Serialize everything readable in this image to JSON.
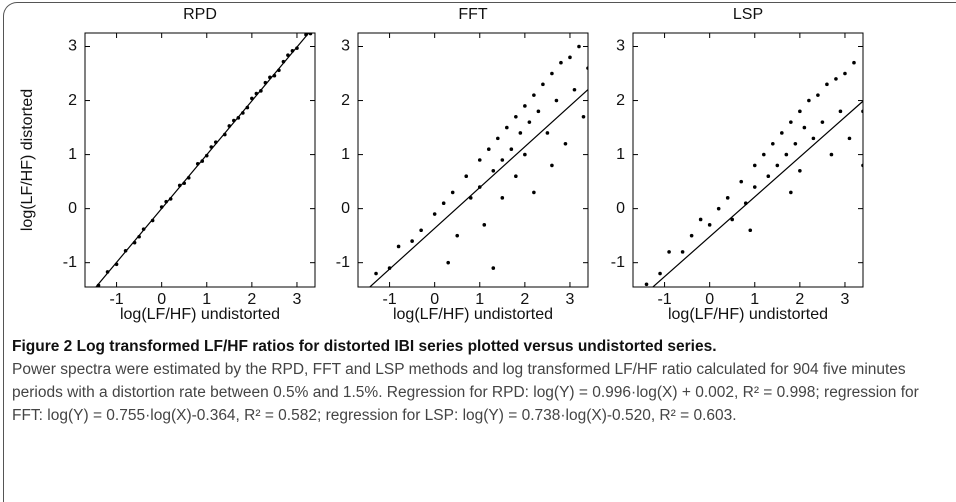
{
  "chart_data": [
    {
      "type": "scatter",
      "title": "RPD",
      "x_label": "log(LF/HF) undistorted",
      "y_label": "log(LF/HF) distorted",
      "xlim": [
        -1.7,
        3.4
      ],
      "ylim": [
        -1.45,
        3.25
      ],
      "xticks": [
        -1,
        0,
        1,
        2,
        3
      ],
      "yticks": [
        -1,
        0,
        1,
        2,
        3
      ],
      "color": "#000000",
      "fit": {
        "slope": 0.996,
        "intercept": 0.002
      },
      "x": [
        -1.4,
        -1.2,
        -1.0,
        -0.8,
        -0.6,
        -0.4,
        -0.2,
        0,
        0.2,
        0.4,
        0.6,
        0.8,
        1.0,
        1.2,
        1.4,
        1.6,
        1.8,
        2.0,
        2.2,
        2.4,
        2.6,
        2.8,
        3.0,
        3.2,
        0.5,
        1.1,
        1.7,
        2.3,
        2.5,
        2.1,
        0.9,
        1.5,
        2.7,
        -0.5,
        0.1,
        1.9,
        2.9,
        3.3
      ],
      "y": [
        -1.42,
        -1.17,
        -1.03,
        -0.78,
        -0.63,
        -0.38,
        -0.22,
        0.03,
        0.18,
        0.43,
        0.57,
        0.83,
        0.98,
        1.23,
        1.37,
        1.63,
        1.77,
        2.04,
        2.18,
        2.43,
        2.56,
        2.84,
        2.97,
        3.22,
        0.47,
        1.14,
        1.68,
        2.33,
        2.46,
        2.13,
        0.88,
        1.53,
        2.72,
        -0.52,
        0.13,
        1.87,
        2.92,
        3.24
      ]
    },
    {
      "type": "scatter",
      "title": "FFT",
      "x_label": "log(LF/HF) undistorted",
      "xlim": [
        -1.7,
        3.4
      ],
      "ylim": [
        -1.45,
        3.25
      ],
      "xticks": [
        -1,
        0,
        1,
        2,
        3
      ],
      "yticks": [
        -1,
        0,
        1,
        2,
        3
      ],
      "color": "#000000",
      "fit": {
        "slope": 0.755,
        "intercept": -0.364
      },
      "x": [
        -1.3,
        -1.0,
        -0.8,
        -0.5,
        -0.3,
        0,
        0.2,
        0.4,
        0.5,
        0.7,
        0.8,
        1.0,
        1.0,
        1.1,
        1.2,
        1.3,
        1.4,
        1.5,
        1.5,
        1.6,
        1.7,
        1.8,
        1.8,
        1.9,
        2.0,
        2.0,
        2.1,
        2.2,
        2.2,
        2.3,
        2.4,
        2.5,
        2.6,
        2.7,
        2.8,
        2.9,
        3.0,
        3.1,
        3.2,
        3.3,
        0.3,
        1.3,
        2.6,
        3.4
      ],
      "y": [
        -1.2,
        -1.1,
        -0.7,
        -0.6,
        -0.4,
        -0.1,
        0.1,
        0.3,
        -0.5,
        0.6,
        0.2,
        0.9,
        0.4,
        -0.3,
        1.1,
        0.7,
        1.3,
        0.9,
        0.2,
        1.5,
        1.1,
        1.7,
        0.6,
        1.4,
        1.9,
        1.0,
        1.6,
        2.1,
        0.3,
        1.8,
        2.3,
        1.4,
        2.5,
        2.0,
        2.7,
        1.2,
        2.8,
        2.2,
        3.0,
        1.7,
        -1.0,
        -1.1,
        0.8,
        2.6
      ]
    },
    {
      "type": "scatter",
      "title": "LSP",
      "x_label": "log(LF/HF) undistorted",
      "xlim": [
        -1.7,
        3.4
      ],
      "ylim": [
        -1.45,
        3.25
      ],
      "xticks": [
        -1,
        0,
        1,
        2,
        3
      ],
      "yticks": [
        -1,
        0,
        1,
        2,
        3
      ],
      "color": "#000000",
      "fit": {
        "slope": 0.738,
        "intercept": -0.52
      },
      "x": [
        -1.4,
        -1.1,
        -0.9,
        -0.6,
        -0.4,
        -0.2,
        0,
        0.2,
        0.4,
        0.5,
        0.7,
        0.8,
        1.0,
        1.0,
        1.2,
        1.3,
        1.4,
        1.5,
        1.6,
        1.7,
        1.8,
        1.9,
        2.0,
        2.0,
        2.1,
        2.2,
        2.3,
        2.4,
        2.5,
        2.6,
        2.7,
        2.8,
        2.9,
        3.0,
        3.1,
        3.2,
        3.4,
        3.4,
        0.9,
        1.8
      ],
      "y": [
        -1.4,
        -1.2,
        -0.8,
        -0.8,
        -0.5,
        -0.2,
        -0.3,
        0.0,
        0.2,
        -0.2,
        0.5,
        0.1,
        0.8,
        0.4,
        1.0,
        0.6,
        1.2,
        0.8,
        1.4,
        1.0,
        1.6,
        1.2,
        1.8,
        0.7,
        1.5,
        2.0,
        1.3,
        2.1,
        1.6,
        2.3,
        1.0,
        2.4,
        1.8,
        2.5,
        1.3,
        2.7,
        0.8,
        1.8,
        -0.4,
        0.3
      ]
    }
  ],
  "caption": {
    "title": "Figure 2 Log transformed LF/HF ratios for distorted IBI series plotted versus undistorted series.",
    "text": "Power spectra were estimated by the RPD, FFT and LSP methods and log transformed LF/HF ratio calculated for 904 five minutes periods with a distortion rate between 0.5% and 1.5%. Regression for RPD: log(Y) = 0.996·log(X) + 0.002, R² = 0.998; regression for FFT: log(Y) = 0.755·log(X)-0.364, R² = 0.582; regression for LSP: log(Y) = 0.738·log(X)-0.520, R² = 0.603."
  }
}
